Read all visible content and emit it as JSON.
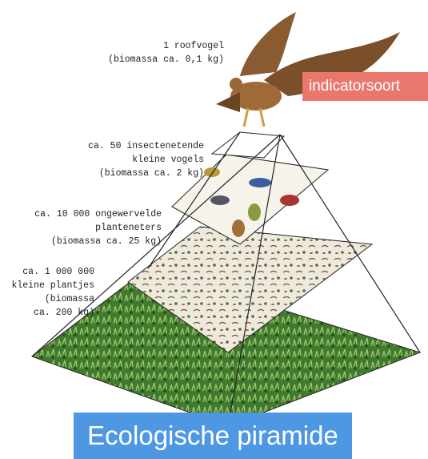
{
  "levels": [
    {
      "lines": [
        "1 roofvogel",
        "(biomassa ca. 0,1 kg)"
      ]
    },
    {
      "lines": [
        "ca. 50 insectenetende",
        "kleine vogels",
        "(biomassa ca. 2 kg)"
      ]
    },
    {
      "lines": [
        "ca. 10 000 ongewervelde",
        "planteneters",
        "(biomassa ca. 25 kg)"
      ]
    },
    {
      "lines": [
        "ca. 1 000 000",
        "kleine plantjes",
        "(biomassa",
        "ca. 200 kg)"
      ]
    }
  ],
  "tag": "indicatorsoort",
  "banner": "Ecologische piramide"
}
